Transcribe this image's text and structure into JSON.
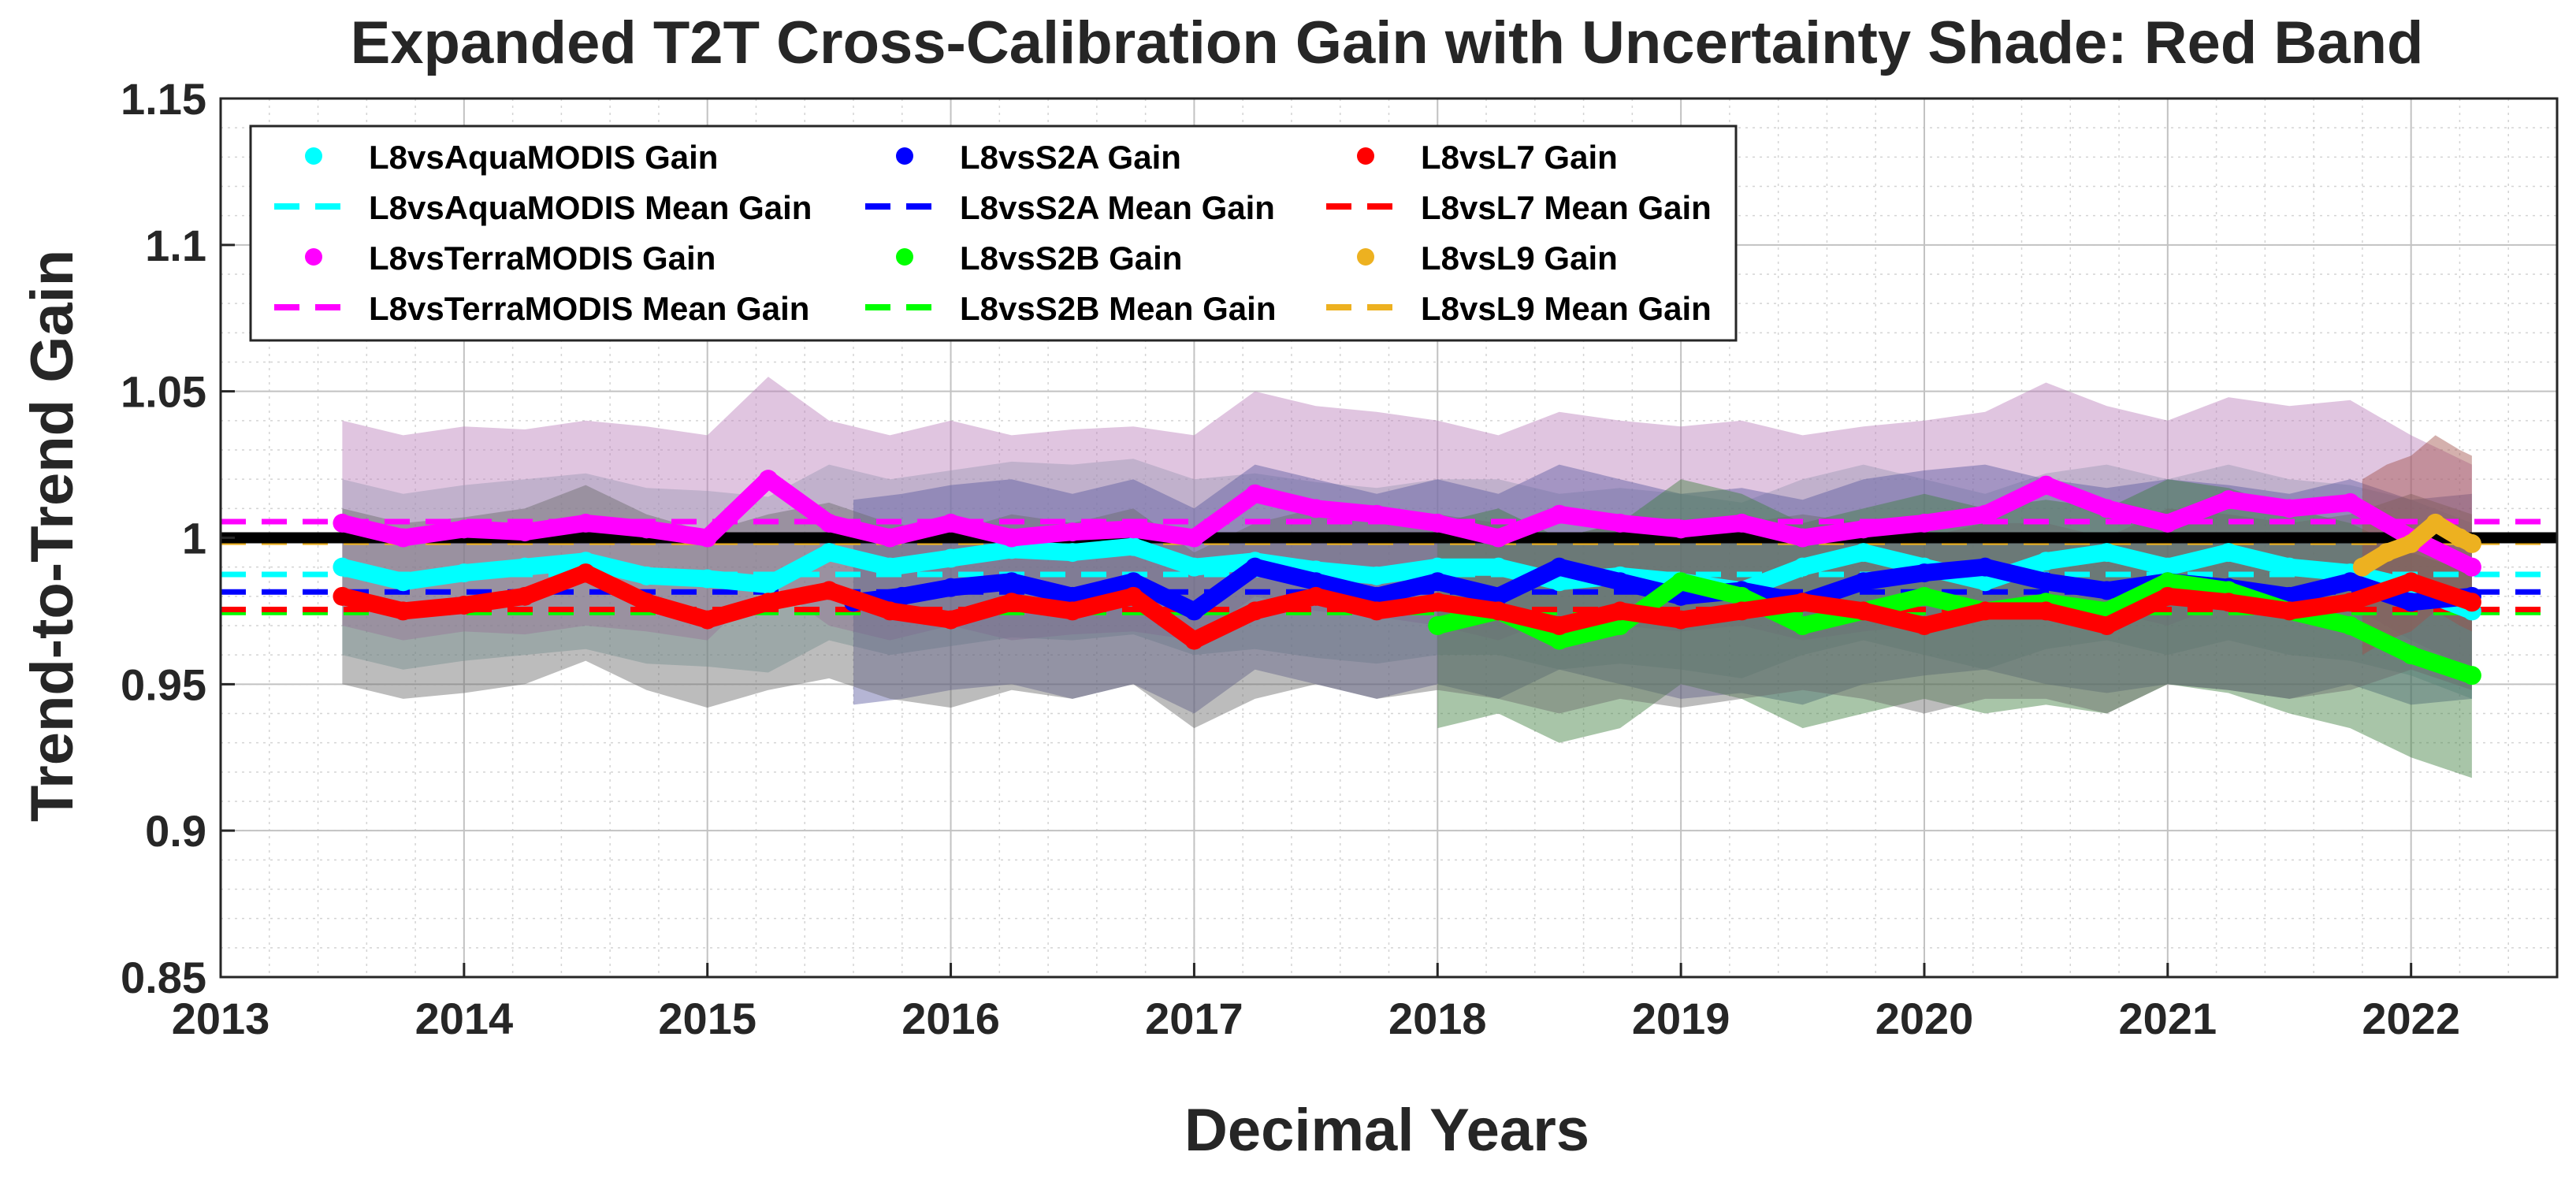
{
  "chart_data": {
    "type": "line",
    "title": "Expanded T2T Cross-Calibration Gain with Uncertainty Shade: Red Band",
    "xlabel": "Decimal Years",
    "ylabel": "Trend-to-Trend Gain",
    "xlim": [
      2013,
      2022.6
    ],
    "ylim": [
      0.85,
      1.15
    ],
    "x_ticks": [
      2013,
      2014,
      2015,
      2016,
      2017,
      2018,
      2019,
      2020,
      2021,
      2022
    ],
    "x_tick_labels": [
      "2013",
      "2014",
      "2015",
      "2016",
      "2017",
      "2018",
      "2019",
      "2020",
      "2021",
      "2022"
    ],
    "y_ticks": [
      0.85,
      0.9,
      0.95,
      1.0,
      1.05,
      1.1,
      1.15
    ],
    "y_tick_labels": [
      "0.85",
      "0.9",
      "0.95",
      "1",
      "1.05",
      "1.1",
      "1.15"
    ],
    "grid": true,
    "legend_location": "top-left",
    "reference_line": {
      "y": 1.0,
      "color": "#000000"
    },
    "legend": [
      {
        "label": "L8vsAquaMODIS Gain",
        "style": "dot",
        "color": "#00FFFF"
      },
      {
        "label": "L8vsS2A Gain",
        "style": "dot",
        "color": "#0000FF"
      },
      {
        "label": "L8vsL7 Gain",
        "style": "dot",
        "color": "#FF0000"
      },
      {
        "label": "L8vsAquaMODIS Mean Gain",
        "style": "dash",
        "color": "#00FFFF"
      },
      {
        "label": "L8vsS2A Mean Gain",
        "style": "dash",
        "color": "#0000FF"
      },
      {
        "label": "L8vsL7 Mean Gain",
        "style": "dash",
        "color": "#FF0000"
      },
      {
        "label": "L8vsTerraMODIS Gain",
        "style": "dot",
        "color": "#FF00FF"
      },
      {
        "label": "L8vsS2B Gain",
        "style": "dot",
        "color": "#00FF00"
      },
      {
        "label": "L8vsL9 Gain",
        "style": "dot",
        "color": "#EDB120"
      },
      {
        "label": "L8vsTerraMODIS Mean Gain",
        "style": "dash",
        "color": "#FF00FF"
      },
      {
        "label": "L8vsS2B Mean Gain",
        "style": "dash",
        "color": "#00FF00"
      },
      {
        "label": "L8vsL9 Mean Gain",
        "style": "dash",
        "color": "#EDB120"
      }
    ],
    "series": [
      {
        "name": "L8vsAquaMODIS Gain",
        "color": "#00FFFF",
        "band_color": "#80B0B0",
        "mean": 0.9875,
        "uncertainty": 0.03,
        "x": [
          2013.5,
          2013.75,
          2014.0,
          2014.25,
          2014.5,
          2014.75,
          2015.0,
          2015.25,
          2015.5,
          2015.75,
          2016.0,
          2016.25,
          2016.5,
          2016.75,
          2017.0,
          2017.25,
          2017.5,
          2017.75,
          2018.0,
          2018.25,
          2018.5,
          2018.75,
          2019.0,
          2019.25,
          2019.5,
          2019.75,
          2020.0,
          2020.25,
          2020.5,
          2020.75,
          2021.0,
          2021.25,
          2021.5,
          2021.75,
          2022.0,
          2022.25
        ],
        "y": [
          0.99,
          0.985,
          0.988,
          0.99,
          0.992,
          0.987,
          0.986,
          0.984,
          0.995,
          0.99,
          0.993,
          0.996,
          0.995,
          0.997,
          0.99,
          0.992,
          0.989,
          0.987,
          0.99,
          0.99,
          0.985,
          0.987,
          0.985,
          0.982,
          0.99,
          0.995,
          0.99,
          0.985,
          0.992,
          0.995,
          0.99,
          0.995,
          0.99,
          0.988,
          0.983,
          0.975
        ]
      },
      {
        "name": "L8vsTerraMODIS Gain",
        "color": "#FF00FF",
        "band_color": "#BA7FBA",
        "mean": 1.0055,
        "uncertainty": 0.035,
        "x": [
          2013.5,
          2013.75,
          2014.0,
          2014.25,
          2014.5,
          2014.75,
          2015.0,
          2015.25,
          2015.5,
          2015.75,
          2016.0,
          2016.25,
          2016.5,
          2016.75,
          2017.0,
          2017.25,
          2017.5,
          2017.75,
          2018.0,
          2018.25,
          2018.5,
          2018.75,
          2019.0,
          2019.25,
          2019.5,
          2019.75,
          2020.0,
          2020.25,
          2020.5,
          2020.75,
          2021.0,
          2021.25,
          2021.5,
          2021.75,
          2022.0,
          2022.25
        ],
        "y": [
          1.005,
          1.0,
          1.003,
          1.002,
          1.005,
          1.003,
          1.0,
          1.02,
          1.005,
          1.0,
          1.005,
          1.0,
          1.002,
          1.003,
          1.0,
          1.015,
          1.01,
          1.008,
          1.005,
          1.0,
          1.008,
          1.005,
          1.003,
          1.005,
          1.0,
          1.003,
          1.005,
          1.008,
          1.018,
          1.01,
          1.005,
          1.013,
          1.01,
          1.012,
          1.0,
          0.99
        ]
      },
      {
        "name": "L8vsS2A Gain",
        "color": "#0000FF",
        "band_color": "#5A5AA0",
        "mean": 0.9815,
        "uncertainty": 0.035,
        "x": [
          2015.6,
          2015.8,
          2016.0,
          2016.25,
          2016.5,
          2016.75,
          2017.0,
          2017.25,
          2017.5,
          2017.75,
          2018.0,
          2018.25,
          2018.5,
          2018.75,
          2019.0,
          2019.25,
          2019.5,
          2019.75,
          2020.0,
          2020.25,
          2020.5,
          2020.75,
          2021.0,
          2021.25,
          2021.5,
          2021.75,
          2022.0,
          2022.25
        ],
        "y": [
          0.978,
          0.98,
          0.983,
          0.985,
          0.98,
          0.985,
          0.975,
          0.99,
          0.985,
          0.98,
          0.985,
          0.98,
          0.99,
          0.985,
          0.98,
          0.982,
          0.978,
          0.985,
          0.988,
          0.99,
          0.985,
          0.982,
          0.985,
          0.983,
          0.98,
          0.985,
          0.978,
          0.98
        ]
      },
      {
        "name": "L8vsS2B Gain",
        "color": "#00FF00",
        "band_color": "#3F7F3F",
        "mean": 0.9745,
        "uncertainty": 0.035,
        "x": [
          2018.0,
          2018.25,
          2018.5,
          2018.75,
          2019.0,
          2019.25,
          2019.5,
          2019.75,
          2020.0,
          2020.25,
          2020.5,
          2020.75,
          2021.0,
          2021.25,
          2021.5,
          2021.75,
          2022.0,
          2022.25
        ],
        "y": [
          0.97,
          0.975,
          0.965,
          0.97,
          0.985,
          0.98,
          0.97,
          0.975,
          0.98,
          0.975,
          0.978,
          0.975,
          0.985,
          0.982,
          0.975,
          0.97,
          0.96,
          0.953
        ]
      },
      {
        "name": "L8vsL7 Gain",
        "color": "#FF0000",
        "band_color": "#6A6A6A",
        "mean": 0.9755,
        "uncertainty": 0.03,
        "x": [
          2013.5,
          2013.75,
          2014.0,
          2014.25,
          2014.5,
          2014.75,
          2015.0,
          2015.25,
          2015.5,
          2015.75,
          2016.0,
          2016.25,
          2016.5,
          2016.75,
          2017.0,
          2017.25,
          2017.5,
          2017.75,
          2018.0,
          2018.25,
          2018.5,
          2018.75,
          2019.0,
          2019.25,
          2019.5,
          2019.75,
          2020.0,
          2020.25,
          2020.5,
          2020.75,
          2021.0,
          2021.25,
          2021.5,
          2021.75,
          2022.0,
          2022.25
        ],
        "y": [
          0.98,
          0.975,
          0.977,
          0.98,
          0.988,
          0.978,
          0.972,
          0.978,
          0.982,
          0.975,
          0.972,
          0.978,
          0.975,
          0.98,
          0.965,
          0.975,
          0.98,
          0.975,
          0.978,
          0.975,
          0.97,
          0.975,
          0.972,
          0.975,
          0.978,
          0.975,
          0.97,
          0.975,
          0.975,
          0.97,
          0.98,
          0.978,
          0.975,
          0.978,
          0.985,
          0.978
        ]
      },
      {
        "name": "L8vsL9 Gain",
        "color": "#EDB120",
        "band_color": "#A0504A",
        "mean": 0.9985,
        "uncertainty": 0.03,
        "x": [
          2021.8,
          2021.9,
          2022.0,
          2022.1,
          2022.2,
          2022.25
        ],
        "y": [
          0.99,
          0.995,
          0.998,
          1.005,
          1.0,
          0.998
        ]
      }
    ]
  }
}
